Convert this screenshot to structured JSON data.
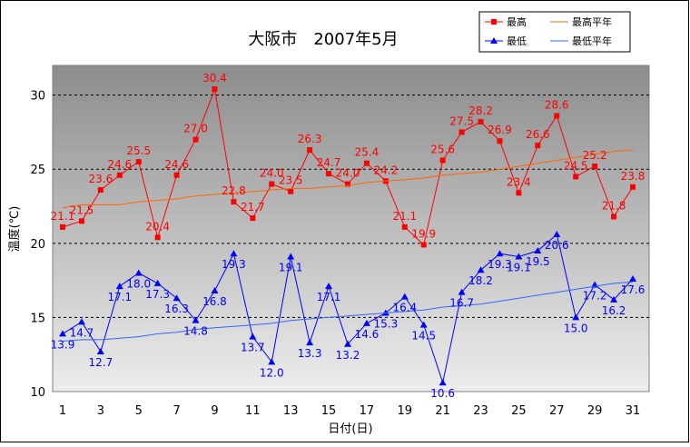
{
  "chart_data": {
    "type": "line",
    "title": "大阪市　2007年5月",
    "xlabel": "日付(日)",
    "ylabel": "温度(℃)",
    "ylim": [
      10,
      32
    ],
    "yticks": [
      10,
      15,
      20,
      25,
      30
    ],
    "xticks": [
      1,
      3,
      5,
      7,
      9,
      11,
      13,
      15,
      17,
      19,
      21,
      23,
      25,
      27,
      29,
      31
    ],
    "grid": true,
    "legend_position": "top-right",
    "x": [
      1,
      2,
      3,
      4,
      5,
      6,
      7,
      8,
      9,
      10,
      11,
      12,
      13,
      14,
      15,
      16,
      17,
      18,
      19,
      20,
      21,
      22,
      23,
      24,
      25,
      26,
      27,
      28,
      29,
      30,
      31
    ],
    "series": [
      {
        "name": "最高",
        "color": "#ff0000",
        "marker": "square",
        "labeled": true,
        "values": [
          21.1,
          21.5,
          23.6,
          24.6,
          25.5,
          20.4,
          24.6,
          27.0,
          30.4,
          22.8,
          21.7,
          24.0,
          23.5,
          26.3,
          24.7,
          24.0,
          25.4,
          24.2,
          21.1,
          19.9,
          25.6,
          27.5,
          28.2,
          26.9,
          23.4,
          26.6,
          28.6,
          24.5,
          25.2,
          21.8,
          23.8
        ],
        "labels": [
          "21.1",
          "21.5",
          "23.6",
          "24.6",
          "25.5",
          "20.4",
          "24.6",
          "27.0",
          "30.4",
          "22.8",
          "21.7",
          "24.0",
          "23.5",
          "26.3",
          "24.7",
          "24.0",
          "25.4",
          "24.2",
          "21.1",
          "19.9",
          "25.6",
          "27.5",
          "28.2",
          "26.9",
          "23.4",
          "26.6",
          "28.6",
          "24.5",
          "25.2",
          "21.8",
          "23.8"
        ]
      },
      {
        "name": "最低",
        "color": "#0000ff",
        "marker": "triangle",
        "labeled": true,
        "values": [
          13.9,
          14.7,
          12.7,
          17.1,
          18.0,
          17.3,
          16.3,
          14.8,
          16.8,
          19.3,
          13.7,
          12.0,
          19.1,
          13.3,
          17.1,
          13.2,
          14.6,
          15.3,
          16.4,
          14.5,
          10.6,
          16.7,
          18.2,
          19.3,
          19.1,
          19.5,
          20.6,
          15.0,
          17.2,
          16.2,
          17.6
        ],
        "labels": [
          "13.9",
          "14.7",
          "12.7",
          "17.1",
          "18.0",
          "17.3",
          "16.3",
          "14.8",
          "16.8",
          "19.3",
          "13.7",
          "12.0",
          "19.1",
          "13.3",
          "17.1",
          "13.2",
          "14.6",
          "15.3",
          "16.4",
          "14.5",
          "10.6",
          "16.7",
          "18.2",
          "19.3",
          "19.1",
          "19.5",
          "20.6",
          "15.0",
          "17.2",
          "16.2",
          "17.6"
        ]
      },
      {
        "name": "最高平年",
        "color": "#ff6600",
        "marker": "none",
        "labeled": false,
        "values": [
          22.4,
          22.6,
          22.6,
          22.6,
          22.8,
          22.9,
          23.0,
          23.2,
          23.3,
          23.4,
          23.5,
          23.6,
          23.7,
          23.7,
          23.8,
          23.9,
          24.1,
          24.2,
          24.3,
          24.4,
          24.6,
          24.7,
          24.8,
          25.0,
          25.2,
          25.4,
          25.6,
          25.8,
          26.0,
          26.2,
          26.3
        ]
      },
      {
        "name": "最低平年",
        "color": "#3366ff",
        "marker": "none",
        "labeled": false,
        "values": [
          13.4,
          13.5,
          13.5,
          13.6,
          13.7,
          13.9,
          14.0,
          14.2,
          14.3,
          14.4,
          14.5,
          14.6,
          14.8,
          14.9,
          15.0,
          15.1,
          15.2,
          15.3,
          15.4,
          15.5,
          15.7,
          15.8,
          15.9,
          16.1,
          16.3,
          16.5,
          16.7,
          16.9,
          17.1,
          17.3,
          17.4
        ]
      }
    ]
  }
}
